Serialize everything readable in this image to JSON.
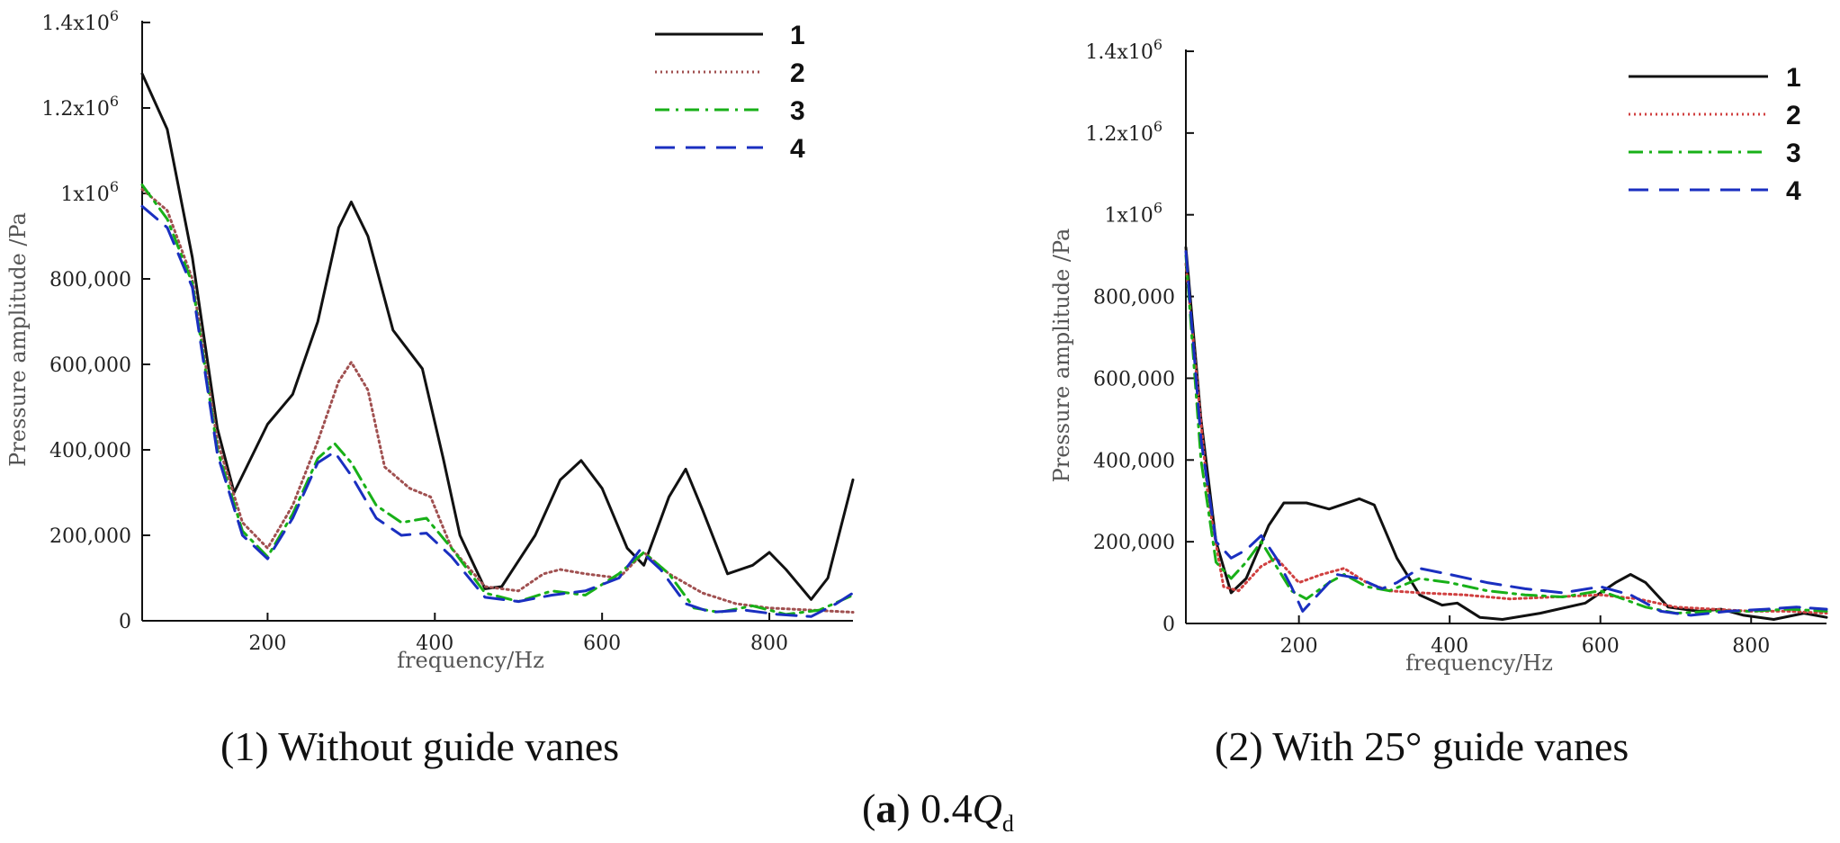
{
  "chart_data": [
    {
      "type": "line",
      "title": "(1) Without guide vanes",
      "xlabel": "frequency/Hz",
      "ylabel": "Pressure amplitude /Pa",
      "xlim": [
        50,
        900
      ],
      "ylim": [
        0,
        1400000
      ],
      "xticks": [
        200,
        400,
        600,
        800
      ],
      "yticks": [
        {
          "v": 0,
          "label": "0"
        },
        {
          "v": 200000,
          "label": "200,000"
        },
        {
          "v": 400000,
          "label": "400,000"
        },
        {
          "v": 600000,
          "label": "600,000"
        },
        {
          "v": 800000,
          "label": "800,000"
        },
        {
          "v": 1000000,
          "label": "1x10",
          "exp": "6"
        },
        {
          "v": 1200000,
          "label": "1.2x10",
          "exp": "6"
        },
        {
          "v": 1400000,
          "label": "1.4x10",
          "exp": "6"
        }
      ],
      "legend_position": "top-right",
      "series": [
        {
          "name": "1",
          "color": "#111111",
          "dash": "solid",
          "points": [
            [
              50,
              1280000
            ],
            [
              80,
              1150000
            ],
            [
              110,
              850000
            ],
            [
              140,
              450000
            ],
            [
              160,
              300000
            ],
            [
              180,
              380000
            ],
            [
              200,
              460000
            ],
            [
              230,
              530000
            ],
            [
              260,
              700000
            ],
            [
              285,
              920000
            ],
            [
              300,
              980000
            ],
            [
              320,
              900000
            ],
            [
              350,
              680000
            ],
            [
              385,
              590000
            ],
            [
              410,
              380000
            ],
            [
              430,
              200000
            ],
            [
              460,
              75000
            ],
            [
              480,
              80000
            ],
            [
              520,
              200000
            ],
            [
              550,
              330000
            ],
            [
              575,
              375000
            ],
            [
              600,
              310000
            ],
            [
              630,
              170000
            ],
            [
              650,
              130000
            ],
            [
              680,
              290000
            ],
            [
              700,
              355000
            ],
            [
              720,
              260000
            ],
            [
              750,
              110000
            ],
            [
              780,
              130000
            ],
            [
              800,
              160000
            ],
            [
              820,
              120000
            ],
            [
              850,
              50000
            ],
            [
              870,
              100000
            ],
            [
              900,
              330000
            ]
          ]
        },
        {
          "name": "2",
          "color": "#a05050",
          "dash": "dotted",
          "points": [
            [
              50,
              1010000
            ],
            [
              80,
              960000
            ],
            [
              110,
              800000
            ],
            [
              140,
              420000
            ],
            [
              170,
              230000
            ],
            [
              200,
              170000
            ],
            [
              230,
              270000
            ],
            [
              260,
              420000
            ],
            [
              285,
              560000
            ],
            [
              300,
              605000
            ],
            [
              320,
              540000
            ],
            [
              340,
              360000
            ],
            [
              370,
              310000
            ],
            [
              395,
              290000
            ],
            [
              420,
              170000
            ],
            [
              460,
              80000
            ],
            [
              500,
              70000
            ],
            [
              530,
              110000
            ],
            [
              550,
              120000
            ],
            [
              580,
              110000
            ],
            [
              620,
              100000
            ],
            [
              650,
              160000
            ],
            [
              680,
              110000
            ],
            [
              720,
              65000
            ],
            [
              760,
              40000
            ],
            [
              800,
              30000
            ],
            [
              850,
              25000
            ],
            [
              900,
              20000
            ]
          ]
        },
        {
          "name": "3",
          "color": "#18b018",
          "dash": "dashdot",
          "points": [
            [
              50,
              1020000
            ],
            [
              80,
              940000
            ],
            [
              110,
              790000
            ],
            [
              140,
              400000
            ],
            [
              170,
              210000
            ],
            [
              200,
              150000
            ],
            [
              230,
              250000
            ],
            [
              260,
              380000
            ],
            [
              280,
              415000
            ],
            [
              300,
              370000
            ],
            [
              330,
              270000
            ],
            [
              360,
              230000
            ],
            [
              390,
              240000
            ],
            [
              420,
              170000
            ],
            [
              460,
              65000
            ],
            [
              500,
              45000
            ],
            [
              540,
              70000
            ],
            [
              580,
              60000
            ],
            [
              620,
              110000
            ],
            [
              650,
              160000
            ],
            [
              680,
              110000
            ],
            [
              710,
              30000
            ],
            [
              740,
              20000
            ],
            [
              780,
              35000
            ],
            [
              820,
              15000
            ],
            [
              860,
              25000
            ],
            [
              900,
              60000
            ]
          ]
        },
        {
          "name": "4",
          "color": "#1a2fc0",
          "dash": "dashed",
          "points": [
            [
              50,
              970000
            ],
            [
              80,
              920000
            ],
            [
              110,
              780000
            ],
            [
              140,
              390000
            ],
            [
              170,
              200000
            ],
            [
              200,
              145000
            ],
            [
              230,
              240000
            ],
            [
              260,
              370000
            ],
            [
              280,
              395000
            ],
            [
              300,
              340000
            ],
            [
              330,
              240000
            ],
            [
              360,
              200000
            ],
            [
              390,
              205000
            ],
            [
              420,
              150000
            ],
            [
              460,
              55000
            ],
            [
              500,
              45000
            ],
            [
              540,
              60000
            ],
            [
              580,
              70000
            ],
            [
              620,
              100000
            ],
            [
              645,
              165000
            ],
            [
              670,
              120000
            ],
            [
              700,
              40000
            ],
            [
              730,
              20000
            ],
            [
              770,
              25000
            ],
            [
              810,
              15000
            ],
            [
              850,
              10000
            ],
            [
              880,
              40000
            ],
            [
              900,
              65000
            ]
          ]
        }
      ]
    },
    {
      "type": "line",
      "title": "(2) With 25° guide vanes",
      "xlabel": "frequency/Hz",
      "ylabel": "Pressure amplitude /Pa",
      "xlim": [
        50,
        900
      ],
      "ylim": [
        0,
        1400000
      ],
      "xticks": [
        200,
        400,
        600,
        800
      ],
      "yticks": [
        {
          "v": 0,
          "label": "0"
        },
        {
          "v": 200000,
          "label": "200,000"
        },
        {
          "v": 400000,
          "label": "400,000"
        },
        {
          "v": 600000,
          "label": "600,000"
        },
        {
          "v": 800000,
          "label": "800,000"
        },
        {
          "v": 1000000,
          "label": "1x10",
          "exp": "6"
        },
        {
          "v": 1200000,
          "label": "1.2x10",
          "exp": "6"
        },
        {
          "v": 1400000,
          "label": "1.4x10",
          "exp": "6"
        }
      ],
      "legend_position": "top-right",
      "series": [
        {
          "name": "1",
          "color": "#111111",
          "dash": "solid",
          "points": [
            [
              50,
              920000
            ],
            [
              70,
              500000
            ],
            [
              90,
              200000
            ],
            [
              110,
              75000
            ],
            [
              130,
              110000
            ],
            [
              160,
              240000
            ],
            [
              180,
              295000
            ],
            [
              210,
              295000
            ],
            [
              240,
              280000
            ],
            [
              280,
              305000
            ],
            [
              300,
              290000
            ],
            [
              330,
              160000
            ],
            [
              360,
              70000
            ],
            [
              390,
              45000
            ],
            [
              410,
              50000
            ],
            [
              440,
              15000
            ],
            [
              470,
              10000
            ],
            [
              520,
              25000
            ],
            [
              580,
              50000
            ],
            [
              620,
              100000
            ],
            [
              640,
              120000
            ],
            [
              660,
              100000
            ],
            [
              690,
              40000
            ],
            [
              730,
              30000
            ],
            [
              760,
              35000
            ],
            [
              790,
              20000
            ],
            [
              830,
              10000
            ],
            [
              870,
              25000
            ],
            [
              900,
              15000
            ]
          ]
        },
        {
          "name": "2",
          "color": "#d04040",
          "dash": "dotted",
          "points": [
            [
              50,
              880000
            ],
            [
              80,
              300000
            ],
            [
              100,
              90000
            ],
            [
              120,
              80000
            ],
            [
              150,
              140000
            ],
            [
              170,
              160000
            ],
            [
              200,
              100000
            ],
            [
              230,
              120000
            ],
            [
              260,
              135000
            ],
            [
              290,
              100000
            ],
            [
              320,
              80000
            ],
            [
              360,
              75000
            ],
            [
              420,
              70000
            ],
            [
              480,
              60000
            ],
            [
              540,
              65000
            ],
            [
              600,
              70000
            ],
            [
              650,
              60000
            ],
            [
              700,
              40000
            ],
            [
              750,
              35000
            ],
            [
              800,
              30000
            ],
            [
              850,
              30000
            ],
            [
              900,
              25000
            ]
          ]
        },
        {
          "name": "3",
          "color": "#18b018",
          "dash": "dashdot",
          "points": [
            [
              50,
              900000
            ],
            [
              70,
              400000
            ],
            [
              90,
              150000
            ],
            [
              110,
              110000
            ],
            [
              130,
              150000
            ],
            [
              150,
              200000
            ],
            [
              170,
              140000
            ],
            [
              190,
              80000
            ],
            [
              210,
              60000
            ],
            [
              240,
              100000
            ],
            [
              260,
              120000
            ],
            [
              290,
              90000
            ],
            [
              320,
              80000
            ],
            [
              360,
              110000
            ],
            [
              400,
              100000
            ],
            [
              450,
              80000
            ],
            [
              500,
              70000
            ],
            [
              550,
              65000
            ],
            [
              600,
              80000
            ],
            [
              630,
              60000
            ],
            [
              660,
              40000
            ],
            [
              700,
              25000
            ],
            [
              750,
              30000
            ],
            [
              800,
              30000
            ],
            [
              850,
              35000
            ],
            [
              900,
              30000
            ]
          ]
        },
        {
          "name": "4",
          "color": "#1a2fc0",
          "dash": "dashed",
          "points": [
            [
              50,
              910000
            ],
            [
              70,
              450000
            ],
            [
              90,
              200000
            ],
            [
              110,
              160000
            ],
            [
              130,
              180000
            ],
            [
              150,
              215000
            ],
            [
              170,
              160000
            ],
            [
              190,
              90000
            ],
            [
              205,
              30000
            ],
            [
              220,
              60000
            ],
            [
              250,
              120000
            ],
            [
              280,
              110000
            ],
            [
              310,
              85000
            ],
            [
              330,
              100000
            ],
            [
              360,
              135000
            ],
            [
              400,
              120000
            ],
            [
              450,
              100000
            ],
            [
              500,
              85000
            ],
            [
              550,
              75000
            ],
            [
              600,
              90000
            ],
            [
              640,
              70000
            ],
            [
              680,
              30000
            ],
            [
              720,
              20000
            ],
            [
              770,
              30000
            ],
            [
              820,
              35000
            ],
            [
              860,
              40000
            ],
            [
              900,
              35000
            ]
          ]
        }
      ]
    }
  ],
  "caption": {
    "panel_prefix": "(a)",
    "panel_letter": "a",
    "condition_coeff": "0.4",
    "condition_symbol": "Q",
    "condition_sub": "d"
  }
}
